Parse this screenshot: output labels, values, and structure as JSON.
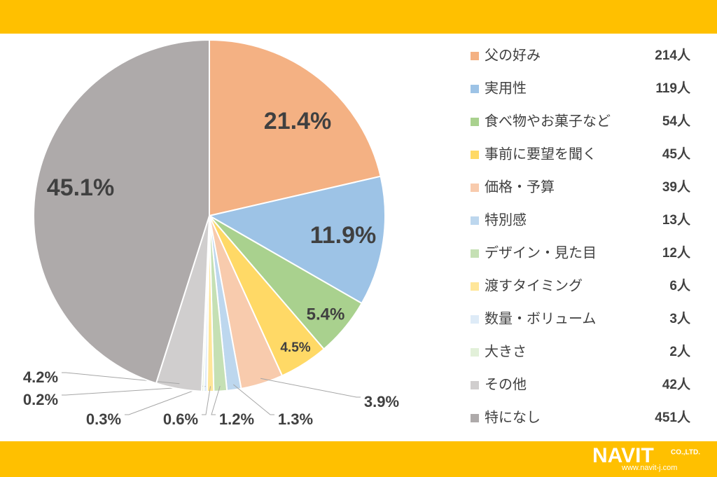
{
  "chart_data": {
    "type": "pie",
    "categories": [
      "父の好み",
      "実用性",
      "食べ物やお菓子など",
      "事前に要望を聞く",
      "価格・予算",
      "特別感",
      "デザイン・見た目",
      "渡すタイミング",
      "数量・ボリューム",
      "大きさ",
      "その他",
      "特になし"
    ],
    "values": [
      21.4,
      11.9,
      5.4,
      4.5,
      3.9,
      1.3,
      1.2,
      0.6,
      0.3,
      0.2,
      4.2,
      45.1
    ],
    "value_labels": [
      "21.4%",
      "11.9%",
      "5.4%",
      "4.5%",
      "3.9%",
      "1.3%",
      "1.2%",
      "0.6%",
      "0.3%",
      "0.2%",
      "4.2%",
      "45.1%"
    ],
    "counts": [
      "214人",
      "119人",
      "54人",
      "45人",
      "39人",
      "13人",
      "12人",
      "6人",
      "3人",
      "2人",
      "42人",
      "451人"
    ],
    "colors": [
      "#f4b183",
      "#9dc3e6",
      "#a9d18e",
      "#ffd966",
      "#f8cbad",
      "#bdd7ee",
      "#c5e0b4",
      "#ffe699",
      "#deebf7",
      "#e2f0d9",
      "#d0cece",
      "#aeaaaa"
    ]
  },
  "logo": {
    "name": "NAVIT",
    "suffix": "CO.,LTD.",
    "url": "www.navit-j.com"
  }
}
